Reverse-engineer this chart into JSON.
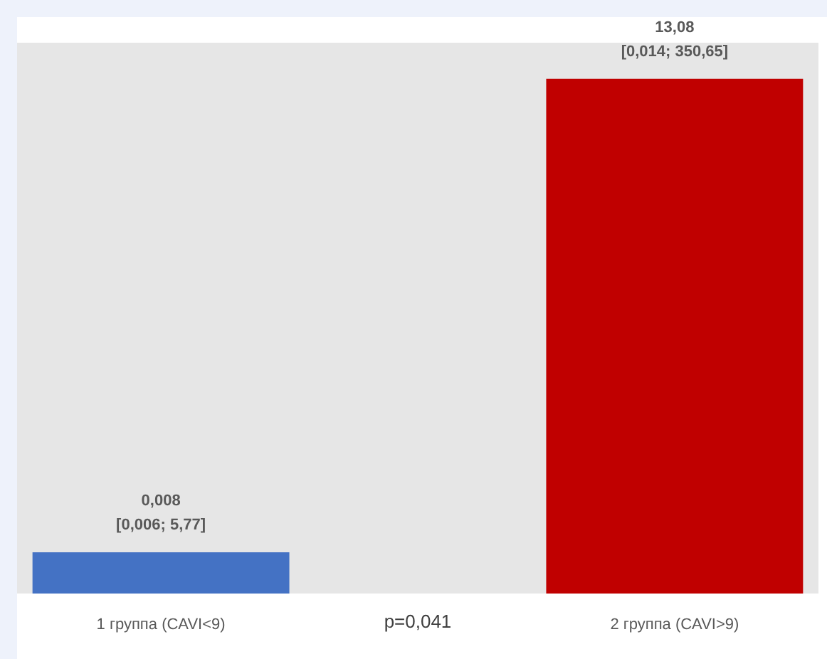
{
  "chart_data": {
    "type": "bar",
    "log": true,
    "ylim": [
      0.0042,
      23
    ],
    "categories": [
      "1 группа (CAVI<9)",
      "2 группа (CAVI>9)"
    ],
    "values": [
      0.008,
      13.08
    ],
    "colors": [
      "#4472c4",
      "#c00000"
    ],
    "value_labels": [
      "0,008\n[0,006; 5,77]",
      "13,08\n[0,014; 350,65]"
    ],
    "annotations": [
      "p=0,041"
    ]
  }
}
